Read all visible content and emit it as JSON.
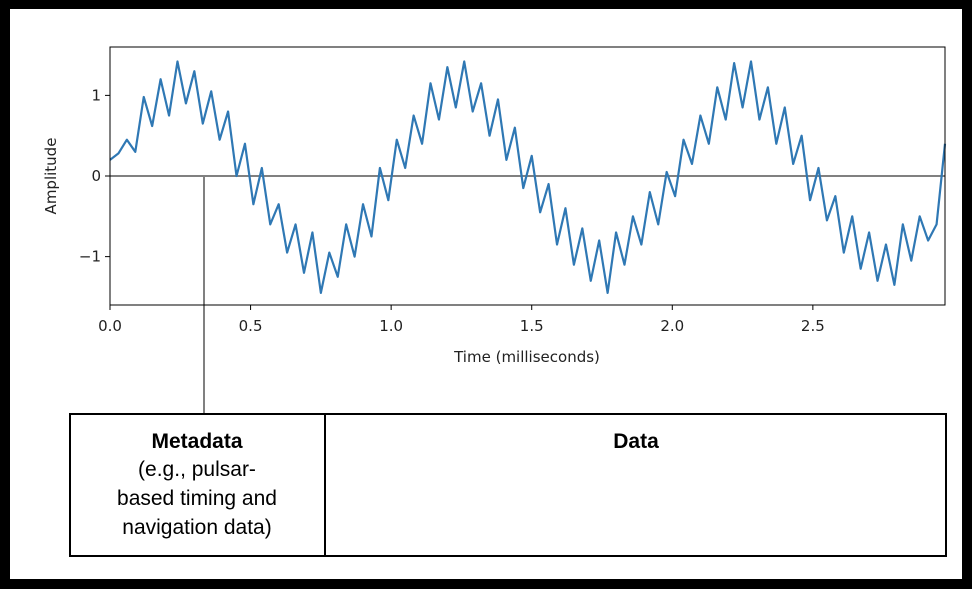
{
  "chart_data": {
    "type": "line",
    "ylabel": "Amplitude",
    "xlabel": "Time (milliseconds)",
    "color": "#2f78b4",
    "x": [
      0,
      0.03,
      0.06,
      0.09,
      0.12,
      0.15,
      0.18,
      0.21,
      0.24,
      0.27,
      0.3,
      0.33,
      0.36,
      0.39,
      0.42,
      0.45,
      0.48,
      0.51,
      0.54,
      0.57,
      0.6,
      0.63,
      0.66,
      0.69,
      0.72,
      0.75,
      0.78,
      0.81,
      0.84,
      0.87,
      0.9,
      0.93,
      0.96,
      0.99,
      1.02,
      1.05,
      1.08,
      1.11,
      1.14,
      1.17,
      1.2,
      1.23,
      1.26,
      1.29,
      1.32,
      1.35,
      1.38,
      1.41,
      1.44,
      1.47,
      1.5,
      1.53,
      1.56,
      1.59,
      1.62,
      1.65,
      1.68,
      1.71,
      1.74,
      1.77,
      1.8,
      1.83,
      1.86,
      1.89,
      1.92,
      1.95,
      1.98,
      2.01,
      2.04,
      2.07,
      2.1,
      2.13,
      2.16,
      2.19,
      2.22,
      2.25,
      2.28,
      2.31,
      2.34,
      2.37,
      2.4,
      2.43,
      2.46,
      2.49,
      2.52,
      2.55,
      2.58,
      2.61,
      2.64,
      2.67,
      2.7,
      2.73,
      2.76,
      2.79,
      2.82,
      2.85,
      2.88,
      2.91,
      2.94,
      2.97
    ],
    "values": [
      0.2,
      0.28,
      0.45,
      0.3,
      0.98,
      0.62,
      1.2,
      0.75,
      1.42,
      0.9,
      1.3,
      0.65,
      1.05,
      0.45,
      0.8,
      0.0,
      0.4,
      -0.35,
      0.1,
      -0.6,
      -0.35,
      -0.95,
      -0.6,
      -1.2,
      -0.7,
      -1.45,
      -0.95,
      -1.25,
      -0.6,
      -1.0,
      -0.35,
      -0.75,
      0.1,
      -0.3,
      0.45,
      0.1,
      0.75,
      0.4,
      1.15,
      0.7,
      1.35,
      0.85,
      1.42,
      0.8,
      1.15,
      0.5,
      0.95,
      0.2,
      0.6,
      -0.15,
      0.25,
      -0.45,
      -0.1,
      -0.85,
      -0.4,
      -1.1,
      -0.65,
      -1.3,
      -0.8,
      -1.45,
      -0.7,
      -1.1,
      -0.5,
      -0.85,
      -0.2,
      -0.6,
      0.05,
      -0.25,
      0.45,
      0.15,
      0.75,
      0.4,
      1.1,
      0.7,
      1.4,
      0.85,
      1.42,
      0.7,
      1.1,
      0.4,
      0.85,
      0.15,
      0.5,
      -0.3,
      0.1,
      -0.55,
      -0.25,
      -0.95,
      -0.5,
      -1.15,
      -0.7,
      -1.3,
      -0.85,
      -1.35,
      -0.6,
      -1.05,
      -0.5,
      -0.8,
      -0.6,
      0.4
    ],
    "xlim": [
      0,
      2.97
    ],
    "ylim": [
      -1.6,
      1.6
    ],
    "xticks": [
      {
        "value": 0,
        "label": "0.0"
      },
      0.5,
      {
        "value": 1,
        "label": "1.0"
      },
      1.5,
      {
        "value": 2,
        "label": "2.0"
      },
      2.5
    ],
    "yticks": [
      {
        "value": -1,
        "label": "−1"
      },
      {
        "value": 0,
        "label": "0"
      },
      {
        "value": 1,
        "label": "1"
      }
    ],
    "hline": 0
  },
  "packet": {
    "metadata": {
      "title": "Metadata",
      "lines": [
        "(e.g., pulsar-",
        "based timing and",
        "navigation data)"
      ]
    },
    "data": {
      "title": "Data"
    }
  }
}
